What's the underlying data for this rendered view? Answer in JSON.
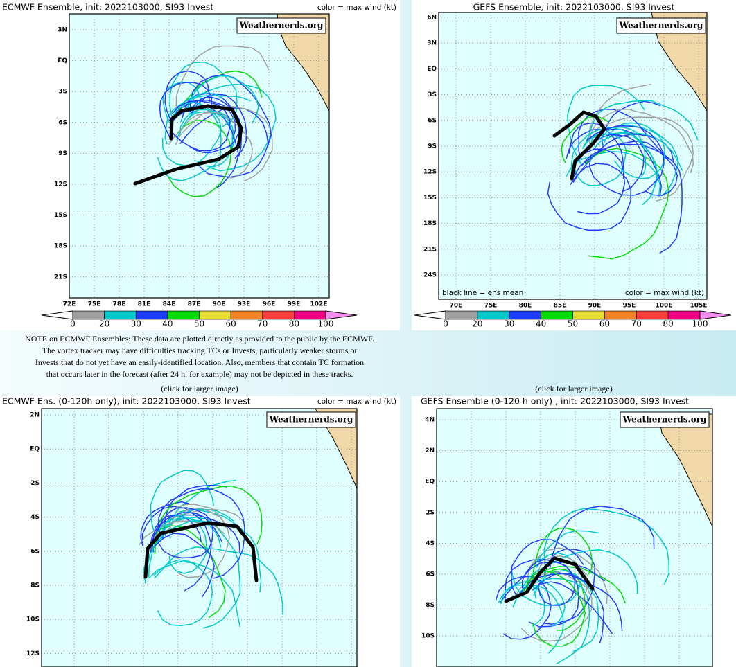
{
  "panels": [
    {
      "title": "ECMWF Ensemble, init: 2022103000, SI93 Invest",
      "legend_note": "color = max wind (kt)",
      "watermark": "Weathernerds.org",
      "lat_labels": [
        "3N",
        "EQ",
        "3S",
        "6S",
        "9S",
        "12S",
        "15S",
        "18S",
        "21S"
      ],
      "lon_labels": [
        "72E",
        "75E",
        "78E",
        "81E",
        "84E",
        "87E",
        "90E",
        "93E",
        "96E",
        "99E",
        "102E"
      ],
      "colorbar": {
        "labels": [
          0,
          20,
          30,
          40,
          50,
          60,
          70,
          80,
          100
        ],
        "colors": [
          "#a0a0a0",
          "#00c8c8",
          "#1e3cff",
          "#00dc00",
          "#e6dc32",
          "#f08228",
          "#fa3c3c",
          "#f00082"
        ],
        "over_color": "#f58cf0"
      }
    },
    {
      "title": "GEFS Ensemble, init: 2022103000, SI93 Invest",
      "legend_note": "color = max wind (kt)",
      "mean_note": "black line = ens mean",
      "watermark": "Weathernerds.org",
      "lat_labels": [
        "6N",
        "3N",
        "EQ",
        "3S",
        "6S",
        "9S",
        "12S",
        "15S",
        "18S",
        "21S",
        "24S"
      ],
      "lon_labels": [
        "70E",
        "75E",
        "80E",
        "85E",
        "90E",
        "95E",
        "100E",
        "105E"
      ],
      "colorbar": {
        "labels": [
          0,
          20,
          30,
          40,
          50,
          60,
          70,
          80,
          100
        ],
        "colors": [
          "#a0a0a0",
          "#00c8c8",
          "#1e3cff",
          "#00dc00",
          "#e6dc32",
          "#f08228",
          "#fa3c3c",
          "#f00082"
        ],
        "over_color": "#f58cf0"
      }
    },
    {
      "title": "ECMWF Ens. (0-120h only), init: 2022103000, SI93 Invest",
      "legend_note": "color = max wind (kt)",
      "watermark": "Weathernerds.org",
      "lat_labels": [
        "2N",
        "EQ",
        "2S",
        "4S",
        "6S",
        "8S",
        "10S",
        "12S"
      ]
    },
    {
      "title": "GEFS Ensemble (0-120 h only) , init: 2022103000, SI93 Invest",
      "watermark": "Weathernerds.org",
      "lat_labels": [
        "4N",
        "2N",
        "EQ",
        "2S",
        "4S",
        "6S",
        "8S",
        "10S"
      ]
    }
  ],
  "note": [
    "NOTE on ECMWF Ensembles: These data are plotted directly as provided to the public by the ECMWF.",
    "The vortex tracker may have difficulties tracking TCs or Invests, particularly weaker storms or",
    "Invests that do not yet have an easily-identified location. Also, members that contain TC formation",
    "that occurs later in the forecast (after 24 h, for example) may not be depicted in these tracks."
  ],
  "click_labels": [
    "(click for larger image)",
    "(click for larger image)"
  ]
}
